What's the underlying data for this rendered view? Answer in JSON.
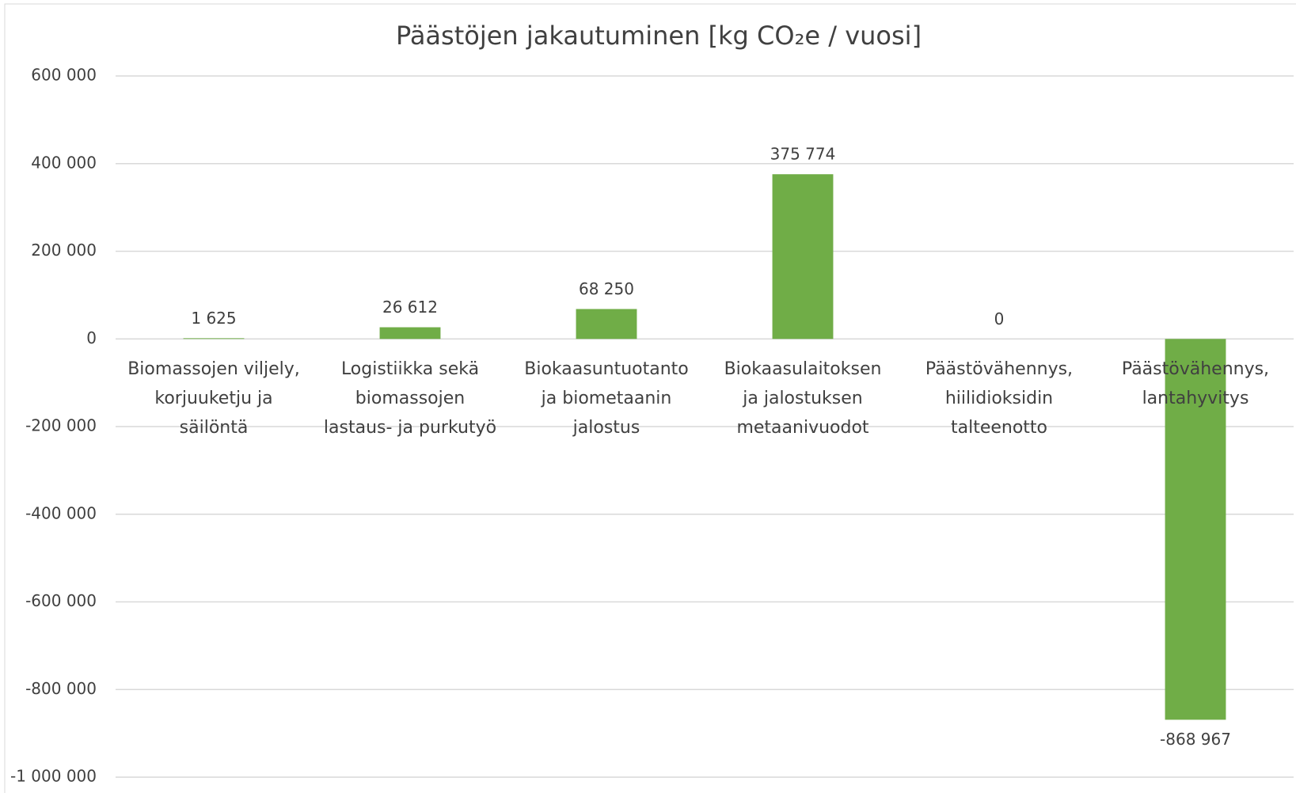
{
  "chart_data": {
    "type": "bar",
    "title": "Päästöjen jakautuminen [kg CO₂e / vuosi]",
    "categories": [
      "Biomassojen viljely,\nkorjuuketju ja\nsäilöntä",
      "Logistiikka sekä\nbiomassojen\nlastaus- ja purkutyö",
      "Biokaasuntuotanto\nja biometaanin\njalostus",
      "Biokaasulaitoksen\nja jalostuksen\nmetaanivuodot",
      "Päästövähennys,\nhiilidioksidin\ntalteenotto",
      "Päästövähennys,\nlantahyvitys"
    ],
    "values": [
      1625,
      26612,
      68250,
      375774,
      0,
      -868967
    ],
    "value_labels": [
      "1 625",
      "26 612",
      "68 250",
      "375 774",
      "0",
      "-868 967"
    ],
    "color": "#70ad47",
    "ylim": [
      -1000000,
      600000
    ],
    "yticks": [
      {
        "value": -1000000,
        "label": "-1 000 000"
      },
      {
        "value": -800000,
        "label": "-800 000"
      },
      {
        "value": -600000,
        "label": "-600 000"
      },
      {
        "value": -400000,
        "label": "-400 000"
      },
      {
        "value": -200000,
        "label": "-200 000"
      },
      0,
      {
        "value": 200000,
        "label": "200 000"
      },
      {
        "value": 400000,
        "label": "400 000"
      },
      {
        "value": 600000,
        "label": "600 000"
      }
    ],
    "grid": true
  }
}
